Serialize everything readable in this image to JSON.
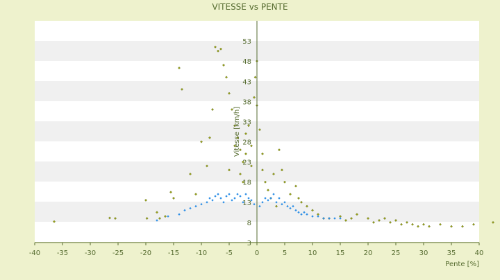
{
  "chart_data": {
    "type": "scatter",
    "title": "VITESSE vs PENTE",
    "xlabel": "Pente [%]",
    "ylabel": "Vitesse [km/h]",
    "xlim": [
      -40,
      40
    ],
    "ylim": [
      3,
      58
    ],
    "x_ticks": [
      -40,
      -35,
      -30,
      -25,
      -20,
      -15,
      -10,
      -5,
      0,
      5,
      10,
      15,
      20,
      25,
      30,
      35,
      40
    ],
    "y_ticks": [
      3,
      8,
      13,
      18,
      23,
      28,
      33,
      38,
      43,
      48,
      53
    ],
    "grid": "horizontal-bands",
    "legend": "none",
    "colors": {
      "background": "#eef2cd",
      "band_light": "#ffffff",
      "band_dark": "#f0f0f0",
      "axis": "#556b2f",
      "text": "#556b2f",
      "series_olive": "#9aa31a",
      "series_blue": "#2e8fe6"
    },
    "series": [
      {
        "color": "#9aa31a",
        "marker": "diamond",
        "points": [
          [
            -36.5,
            8.2
          ],
          [
            -26.5,
            9.1
          ],
          [
            -25.5,
            9
          ],
          [
            -20,
            13.5
          ],
          [
            -19.8,
            9
          ],
          [
            -18,
            10.5
          ],
          [
            -17.5,
            9
          ],
          [
            -16.5,
            9.5
          ],
          [
            -15.5,
            15.5
          ],
          [
            -15,
            14
          ],
          [
            -14,
            46.3
          ],
          [
            -13.5,
            41
          ],
          [
            -12,
            20
          ],
          [
            -11,
            15
          ],
          [
            -10,
            28
          ],
          [
            -9,
            22
          ],
          [
            -8.5,
            29
          ],
          [
            -8,
            36
          ],
          [
            -7.5,
            51.5
          ],
          [
            -7,
            50.5
          ],
          [
            -6.5,
            51
          ],
          [
            -6,
            47
          ],
          [
            -5.5,
            44
          ],
          [
            -5,
            40
          ],
          [
            -5,
            21
          ],
          [
            -4.5,
            36
          ],
          [
            -4,
            32
          ],
          [
            -4,
            27
          ],
          [
            -3.5,
            29
          ],
          [
            -3,
            26
          ],
          [
            -3,
            20
          ],
          [
            -2.5,
            23
          ],
          [
            -2.5,
            18
          ],
          [
            -2,
            30
          ],
          [
            -2,
            25
          ],
          [
            -1.5,
            32
          ],
          [
            -1,
            27
          ],
          [
            -1,
            22
          ],
          [
            -0.5,
            39
          ],
          [
            -0.3,
            44
          ],
          [
            0,
            48
          ],
          [
            0,
            37
          ],
          [
            0.5,
            31
          ],
          [
            1,
            25
          ],
          [
            1,
            21
          ],
          [
            1.5,
            18
          ],
          [
            2,
            16
          ],
          [
            2.5,
            14
          ],
          [
            3,
            20
          ],
          [
            3.5,
            12
          ],
          [
            4,
            26
          ],
          [
            4.5,
            21
          ],
          [
            5,
            18
          ],
          [
            6,
            15
          ],
          [
            7,
            17
          ],
          [
            7.5,
            14
          ],
          [
            8,
            13
          ],
          [
            9,
            12
          ],
          [
            10,
            11
          ],
          [
            11,
            10
          ],
          [
            12,
            9
          ],
          [
            13,
            9
          ],
          [
            15,
            9.5
          ],
          [
            16,
            8.5
          ],
          [
            17,
            9
          ],
          [
            18,
            10
          ],
          [
            20,
            9
          ],
          [
            21,
            8
          ],
          [
            22,
            8.5
          ],
          [
            23,
            9
          ],
          [
            24,
            8
          ],
          [
            25,
            8.5
          ],
          [
            26,
            7.5
          ],
          [
            27,
            8
          ],
          [
            28,
            7.5
          ],
          [
            29,
            7
          ],
          [
            30,
            7.5
          ],
          [
            31,
            7
          ],
          [
            33,
            7.5
          ],
          [
            35,
            7
          ],
          [
            37,
            7
          ],
          [
            39,
            7.5
          ],
          [
            42.5,
            8
          ]
        ]
      },
      {
        "color": "#2e8fe6",
        "marker": "diamond",
        "points": [
          [
            -18,
            8.5
          ],
          [
            -16,
            9.5
          ],
          [
            -14,
            10
          ],
          [
            -13,
            11
          ],
          [
            -12,
            11.5
          ],
          [
            -11,
            12
          ],
          [
            -10,
            12.5
          ],
          [
            -9,
            13
          ],
          [
            -8.5,
            14
          ],
          [
            -8,
            13.5
          ],
          [
            -7.5,
            14.5
          ],
          [
            -7,
            15
          ],
          [
            -6.5,
            14
          ],
          [
            -6,
            13
          ],
          [
            -5.5,
            14.5
          ],
          [
            -5,
            15
          ],
          [
            -4.5,
            13.5
          ],
          [
            -4,
            14
          ],
          [
            -3.5,
            15
          ],
          [
            -3,
            14.5
          ],
          [
            -2.5,
            13
          ],
          [
            -2,
            15
          ],
          [
            -1.5,
            14
          ],
          [
            -1,
            13.5
          ],
          [
            -0.5,
            12.5
          ],
          [
            0.5,
            12
          ],
          [
            1,
            13
          ],
          [
            1.5,
            14
          ],
          [
            2,
            13.5
          ],
          [
            2.5,
            14
          ],
          [
            3,
            15
          ],
          [
            3.5,
            13
          ],
          [
            4,
            14
          ],
          [
            4.5,
            12.5
          ],
          [
            5,
            13
          ],
          [
            5.5,
            12
          ],
          [
            6,
            11.5
          ],
          [
            6.5,
            12
          ],
          [
            7,
            11
          ],
          [
            7.5,
            10.5
          ],
          [
            8,
            10
          ],
          [
            8.5,
            10.5
          ],
          [
            9,
            10
          ],
          [
            10,
            9.5
          ],
          [
            11,
            9.5
          ],
          [
            12,
            9
          ],
          [
            13,
            9
          ],
          [
            14,
            9
          ],
          [
            15,
            9
          ]
        ]
      }
    ]
  }
}
